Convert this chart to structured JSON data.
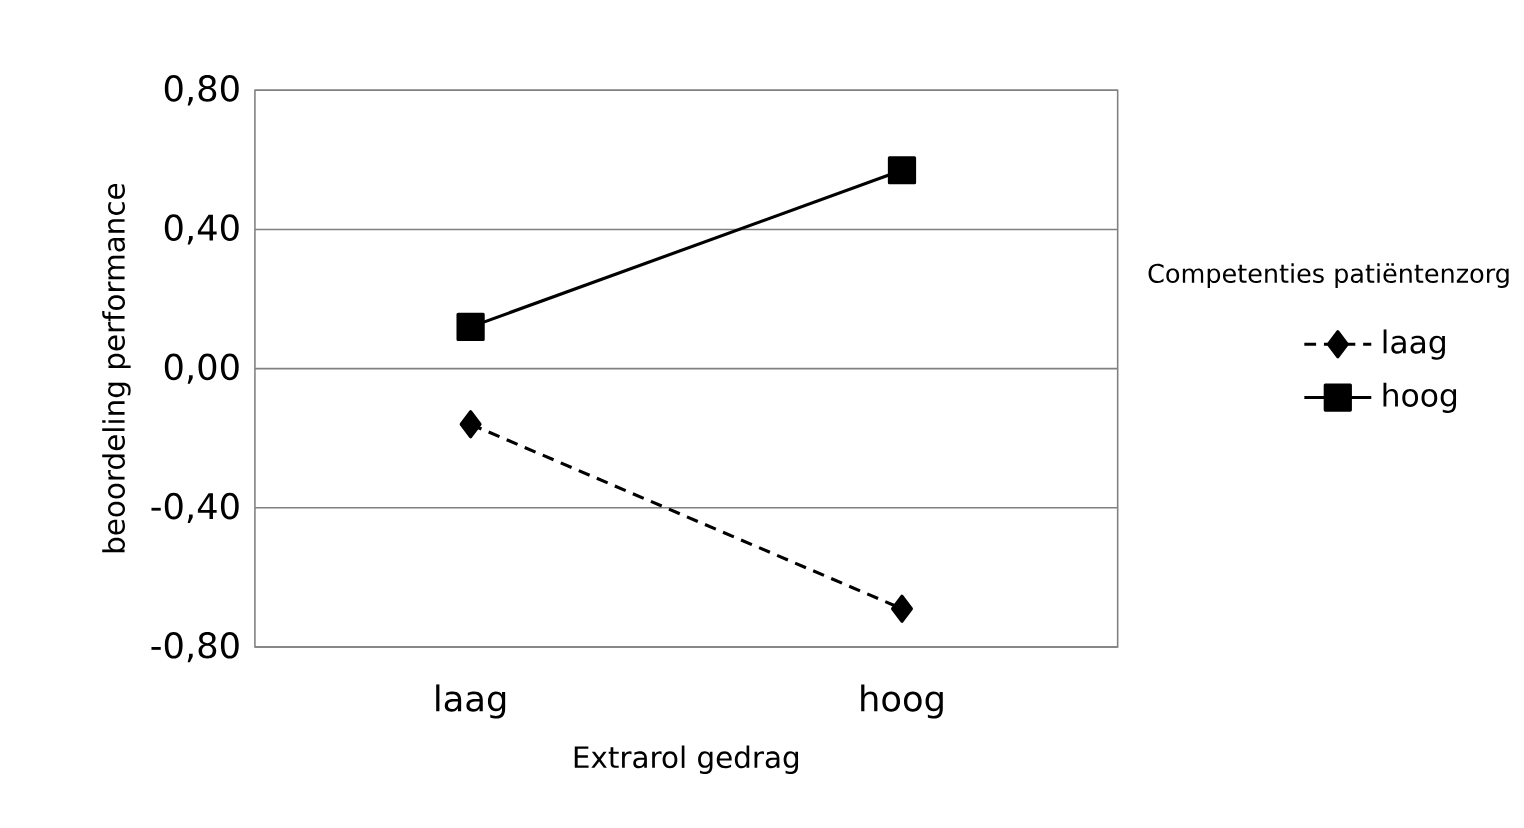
{
  "chart_data": {
    "type": "line",
    "xlabel": "Extrarol gedrag",
    "ylabel": "beoordeling performance",
    "legend_title": "Competenties patiëntenzorg",
    "categories": [
      "laag",
      "hoog"
    ],
    "series": [
      {
        "name": "laag",
        "color": "#000000",
        "values": [
          -0.16,
          -0.69
        ],
        "marker": "diamond",
        "line_style": "dashed"
      },
      {
        "name": "hoog",
        "color": "#000000",
        "values": [
          0.12,
          0.57
        ],
        "marker": "square",
        "line_style": "solid"
      }
    ],
    "ylim": [
      -0.8,
      0.8
    ],
    "yticks": [
      {
        "value": -0.8,
        "label": "-0,80"
      },
      {
        "value": -0.4,
        "label": "-0,40"
      },
      {
        "value": 0,
        "label": "0,00"
      },
      {
        "value": 0.4,
        "label": "0,40"
      },
      {
        "value": 0.8,
        "label": "0,80"
      }
    ],
    "grid": "y",
    "legend": "right"
  }
}
